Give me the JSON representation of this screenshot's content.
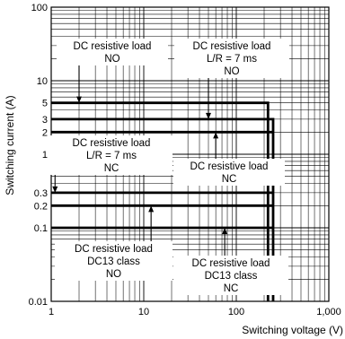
{
  "chart_data": {
    "type": "line",
    "title": "",
    "xlabel": "Switching voltage (V)",
    "ylabel": "Switching current (A)",
    "x_scale": "log",
    "y_scale": "log",
    "xlim": [
      1,
      1000
    ],
    "ylim": [
      0.01,
      100
    ],
    "grid": true,
    "x_ticks": [
      {
        "value": 1,
        "label": "1"
      },
      {
        "value": 10,
        "label": "10"
      },
      {
        "value": 100,
        "label": "100"
      },
      {
        "value": 1000,
        "label": "1,000"
      }
    ],
    "y_ticks": [
      {
        "value": 0.01,
        "label": "0.01"
      },
      {
        "value": 0.1,
        "label": "0.1"
      },
      {
        "value": 0.2,
        "label": "0.2"
      },
      {
        "value": 0.3,
        "label": "0.3"
      },
      {
        "value": 1,
        "label": "1"
      },
      {
        "value": 2,
        "label": "2"
      },
      {
        "value": 3,
        "label": "3"
      },
      {
        "value": 5,
        "label": "5"
      },
      {
        "value": 10,
        "label": "10"
      },
      {
        "value": 100,
        "label": "100"
      }
    ],
    "series": [
      {
        "points": [
          [
            1,
            5
          ],
          [
            220,
            5
          ],
          [
            220,
            0.01
          ]
        ]
      },
      {
        "points": [
          [
            1,
            3
          ],
          [
            250,
            3
          ],
          [
            250,
            0.01
          ]
        ]
      },
      {
        "points": [
          [
            1,
            2
          ],
          [
            250,
            2
          ]
        ]
      },
      {
        "points": [
          [
            1,
            0.3
          ],
          [
            250,
            0.3
          ]
        ]
      },
      {
        "points": [
          [
            1,
            0.2
          ],
          [
            250,
            0.2
          ]
        ]
      },
      {
        "points": [
          [
            1,
            0.1
          ],
          [
            250,
            0.1
          ]
        ]
      }
    ],
    "annotations": [
      {
        "lines": [
          "DC resistive load",
          "NO"
        ],
        "pointer": [
          2,
          5
        ]
      },
      {
        "lines": [
          "DC resistive load",
          "L/R = 7 ms",
          "NO"
        ],
        "pointer": [
          50,
          3
        ]
      },
      {
        "lines": [
          "DC resistive load",
          "L/R = 7 ms",
          "NC"
        ],
        "pointer": [
          1.1,
          0.3
        ]
      },
      {
        "lines": [
          "DC resistive load",
          "NC"
        ],
        "pointer": [
          60,
          2
        ]
      },
      {
        "lines": [
          "DC resistive load",
          "DC13 class",
          "NO"
        ],
        "pointer": [
          12,
          0.2
        ]
      },
      {
        "lines": [
          "DC resistive load",
          "DC13 class",
          "NC"
        ],
        "pointer": [
          75,
          0.1
        ]
      }
    ]
  }
}
